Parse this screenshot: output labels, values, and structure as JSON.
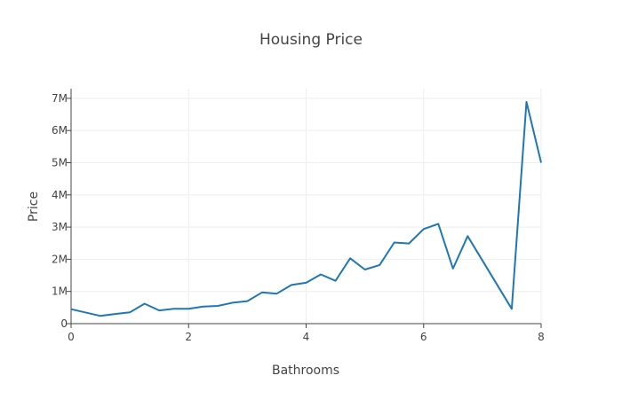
{
  "chart_data": {
    "type": "line",
    "title": "Housing Price",
    "xlabel": "Bathrooms",
    "ylabel": "Price",
    "xlim": [
      0,
      8
    ],
    "ylim": [
      0,
      7300000
    ],
    "grid": true,
    "colors": {
      "line": "#1f77b4",
      "grid": "#eeeeee",
      "axis": "#444444"
    },
    "x_ticks": [
      {
        "value": 0,
        "label": "0"
      },
      {
        "value": 2,
        "label": "2"
      },
      {
        "value": 4,
        "label": "4"
      },
      {
        "value": 6,
        "label": "6"
      },
      {
        "value": 8,
        "label": "8"
      }
    ],
    "y_ticks": [
      {
        "value": 0,
        "label": "0"
      },
      {
        "value": 1000000,
        "label": "1M"
      },
      {
        "value": 2000000,
        "label": "2M"
      },
      {
        "value": 3000000,
        "label": "3M"
      },
      {
        "value": 4000000,
        "label": "4M"
      },
      {
        "value": 5000000,
        "label": "5M"
      },
      {
        "value": 6000000,
        "label": "6M"
      },
      {
        "value": 7000000,
        "label": "7M"
      }
    ],
    "series": [
      {
        "x": [
          0,
          0.5,
          0.75,
          1,
          1.25,
          1.5,
          1.75,
          2,
          2.25,
          2.5,
          2.75,
          3,
          3.25,
          3.5,
          3.75,
          4,
          4.25,
          4.5,
          4.75,
          5,
          5.25,
          5.5,
          5.75,
          6,
          6.25,
          6.5,
          6.75,
          7.5,
          7.75,
          8
        ],
        "y": [
          450000,
          240000,
          300000,
          350000,
          620000,
          410000,
          460000,
          460000,
          530000,
          550000,
          650000,
          700000,
          970000,
          930000,
          1200000,
          1270000,
          1530000,
          1330000,
          2030000,
          1680000,
          1820000,
          2520000,
          2490000,
          2940000,
          3100000,
          1710000,
          2720000,
          460000,
          6890000,
          5000000
        ]
      }
    ]
  }
}
